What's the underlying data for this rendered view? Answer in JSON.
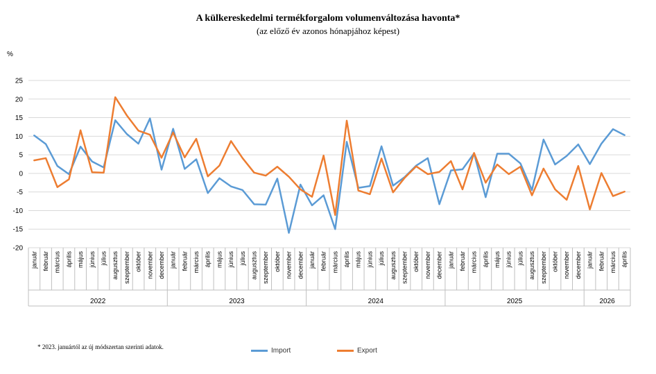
{
  "title": "A külkereskedelmi termékforgalom  volumenváltozása havonta*",
  "subtitle": "(az előző év azonos hónapjához képest)",
  "unit": "%",
  "footnote": "* 2023. januártól az új módszertan szerinti adatok.",
  "colors": {
    "import": "#5b9bd5",
    "export": "#ed7d31",
    "grid": "#d9d9d9",
    "axis": "#bfbfbf"
  },
  "chart_data": {
    "type": "line",
    "ylim": [
      -20,
      25
    ],
    "yticks": [
      -20,
      -15,
      -10,
      -5,
      0,
      5,
      10,
      15,
      20,
      25
    ],
    "grid": true,
    "legend_position": "bottom",
    "years": [
      {
        "label": "2022",
        "count": 12
      },
      {
        "label": "2023",
        "count": 12
      },
      {
        "label": "2024",
        "count": 12
      },
      {
        "label": "2025",
        "count": 12
      },
      {
        "label": "2026",
        "count": 4
      }
    ],
    "categories": [
      "január",
      "február",
      "március",
      "április",
      "május",
      "június",
      "július",
      "augusztus",
      "szeptember",
      "október",
      "november",
      "december",
      "január",
      "február",
      "március",
      "április",
      "május",
      "június",
      "július",
      "augusztus",
      "szeptember",
      "október",
      "november",
      "december",
      "január",
      "február",
      "március",
      "április",
      "május",
      "június",
      "július",
      "augusztus",
      "szeptember",
      "október",
      "november",
      "december",
      "január",
      "február",
      "március",
      "április",
      "május",
      "június",
      "július",
      "augusztus",
      "szeptember",
      "október",
      "november",
      "december",
      "január",
      "február",
      "március",
      "április"
    ],
    "series": [
      {
        "name": "Import",
        "values": [
          10.2,
          7.9,
          2.0,
          -0.2,
          7.2,
          3.2,
          1.6,
          14.3,
          10.6,
          8.0,
          14.8,
          1.0,
          12.0,
          1.2,
          3.8,
          -5.3,
          -1.3,
          -3.5,
          -4.5,
          -8.3,
          -8.4,
          -1.4,
          -16.0,
          -3.0,
          -8.6,
          -5.9,
          -15.0,
          8.5,
          -3.9,
          -3.4,
          7.3,
          -3.3,
          -1.0,
          2.1,
          4.1,
          -8.3,
          0.8,
          1.1,
          5.4,
          -6.4,
          5.3,
          5.3,
          2.7,
          -4.5,
          9.1,
          2.4,
          4.7,
          7.8,
          2.5,
          8.0,
          11.9,
          10.3
        ]
      },
      {
        "name": "Export",
        "values": [
          3.5,
          4.1,
          -3.7,
          -1.6,
          11.6,
          0.3,
          0.2,
          20.5,
          15.6,
          11.5,
          10.4,
          4.2,
          11.0,
          4.3,
          9.3,
          -0.8,
          2.1,
          8.7,
          4.1,
          0.2,
          -0.6,
          1.8,
          -0.9,
          -4.3,
          -6.3,
          4.8,
          -11.2,
          14.2,
          -4.6,
          -5.6,
          4.0,
          -5.1,
          -1.2,
          1.9,
          -0.2,
          0.4,
          3.3,
          -4.3,
          5.5,
          -2.5,
          2.4,
          -0.2,
          1.8,
          -5.9,
          1.3,
          -4.3,
          -7.1,
          2.0,
          -9.7,
          0.1,
          -6.1,
          -4.9
        ]
      }
    ]
  }
}
